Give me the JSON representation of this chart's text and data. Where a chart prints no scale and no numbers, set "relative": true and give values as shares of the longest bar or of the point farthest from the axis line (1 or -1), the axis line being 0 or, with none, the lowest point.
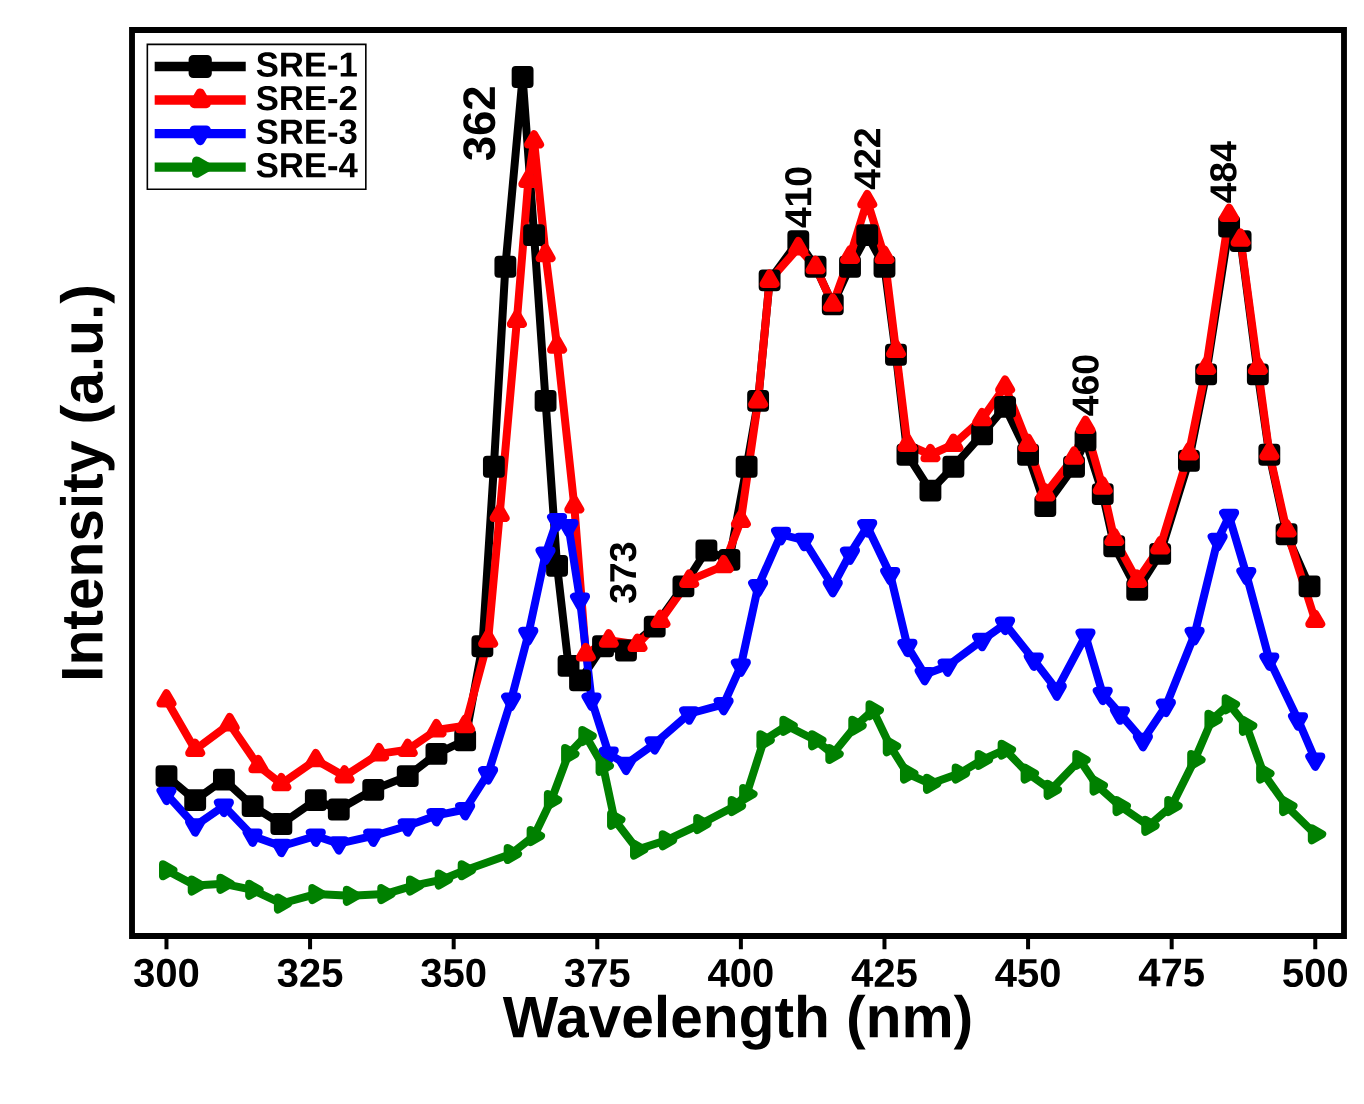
{
  "chart_data": {
    "type": "line",
    "relative": true,
    "xlabel": "Wavelength (nm)",
    "ylabel": "Intensity (a.u.)",
    "xlim": [
      294,
      505
    ],
    "xticks": [
      300,
      325,
      350,
      375,
      400,
      425,
      450,
      475,
      500
    ],
    "legend": "top left",
    "grid": false,
    "series": [
      {
        "name": "SRE-1",
        "color": "#000000",
        "marker": "square",
        "x": [
          300,
          305,
          310,
          315,
          320,
          326,
          330,
          336,
          342,
          347,
          352,
          355,
          357,
          359,
          362,
          364,
          366,
          368,
          370,
          372,
          376,
          380,
          385,
          390,
          394,
          398,
          401,
          403,
          405,
          410,
          413,
          416,
          419,
          422,
          425,
          427,
          429,
          433,
          437,
          442,
          446,
          450,
          453,
          458,
          460,
          463,
          465,
          469,
          473,
          478,
          481,
          485,
          487,
          490,
          492,
          495,
          499
        ],
        "values": [
          0.182,
          0.154,
          0.178,
          0.147,
          0.126,
          0.154,
          0.143,
          0.166,
          0.182,
          0.208,
          0.224,
          0.334,
          0.544,
          0.778,
          1.0,
          0.815,
          0.621,
          0.428,
          0.311,
          0.294,
          0.334,
          0.329,
          0.357,
          0.404,
          0.446,
          0.435,
          0.544,
          0.621,
          0.762,
          0.808,
          0.778,
          0.734,
          0.778,
          0.815,
          0.778,
          0.675,
          0.558,
          0.516,
          0.544,
          0.582,
          0.614,
          0.558,
          0.498,
          0.544,
          0.575,
          0.512,
          0.451,
          0.4,
          0.442,
          0.551,
          0.652,
          0.825,
          0.808,
          0.652,
          0.558,
          0.465,
          0.404
        ]
      },
      {
        "name": "SRE-2",
        "color": "#ff0000",
        "marker": "triangle",
        "x": [
          300,
          305,
          311,
          316,
          320,
          326,
          331,
          337,
          342,
          347,
          352,
          356,
          358,
          361,
          363,
          364,
          366,
          368,
          371,
          373,
          377,
          382,
          386,
          391,
          397,
          400,
          403,
          405,
          410,
          413,
          416,
          419,
          422,
          425,
          427,
          429,
          433,
          437,
          442,
          446,
          450,
          453,
          458,
          460,
          463,
          465,
          469,
          473,
          478,
          481,
          485,
          487,
          490,
          492,
          495,
          500
        ],
        "values": [
          0.271,
          0.213,
          0.243,
          0.194,
          0.173,
          0.201,
          0.182,
          0.208,
          0.213,
          0.236,
          0.241,
          0.341,
          0.488,
          0.715,
          0.879,
          0.925,
          0.792,
          0.685,
          0.498,
          0.325,
          0.341,
          0.336,
          0.364,
          0.411,
          0.428,
          0.481,
          0.621,
          0.762,
          0.8,
          0.778,
          0.734,
          0.79,
          0.855,
          0.79,
          0.68,
          0.57,
          0.558,
          0.57,
          0.6,
          0.638,
          0.57,
          0.512,
          0.555,
          0.591,
          0.52,
          0.46,
          0.411,
          0.45,
          0.56,
          0.66,
          0.839,
          0.81,
          0.66,
          0.56,
          0.47,
          0.364
        ]
      },
      {
        "name": "SRE-3",
        "color": "#0000ff",
        "marker": "triangle-down",
        "x": [
          300,
          305,
          310,
          315,
          320,
          326,
          330,
          336,
          342,
          347,
          352,
          356,
          360,
          363,
          366,
          368,
          370,
          372,
          374,
          377,
          380,
          385,
          391,
          397,
          400,
          403,
          407,
          411,
          416,
          419,
          422,
          426,
          429,
          432,
          436,
          442,
          446,
          451,
          455,
          460,
          463,
          466,
          470,
          474,
          479,
          483,
          485,
          488,
          492,
          497,
          500
        ],
        "values": [
          0.161,
          0.124,
          0.147,
          0.112,
          0.1,
          0.112,
          0.103,
          0.112,
          0.124,
          0.136,
          0.143,
          0.185,
          0.271,
          0.348,
          0.442,
          0.481,
          0.474,
          0.388,
          0.271,
          0.208,
          0.196,
          0.22,
          0.255,
          0.266,
          0.311,
          0.404,
          0.465,
          0.458,
          0.404,
          0.442,
          0.474,
          0.418,
          0.334,
          0.301,
          0.311,
          0.341,
          0.36,
          0.318,
          0.283,
          0.346,
          0.278,
          0.255,
          0.224,
          0.264,
          0.348,
          0.458,
          0.486,
          0.418,
          0.318,
          0.248,
          0.201
        ]
      },
      {
        "name": "SRE-4",
        "color": "#008000",
        "marker": "triangle-right",
        "x": [
          300,
          305,
          310,
          315,
          320,
          326,
          332,
          338,
          343,
          348,
          352,
          360,
          364,
          367,
          370,
          373,
          376,
          378,
          382,
          387,
          393,
          399,
          401,
          404,
          408,
          413,
          416,
          420,
          423,
          426,
          429,
          433,
          438,
          442,
          446,
          450,
          454,
          459,
          462,
          466,
          471,
          475,
          479,
          482,
          485,
          488,
          491,
          495,
          500
        ],
        "values": [
          0.072,
          0.054,
          0.056,
          0.049,
          0.033,
          0.044,
          0.042,
          0.044,
          0.054,
          0.061,
          0.072,
          0.091,
          0.112,
          0.154,
          0.208,
          0.229,
          0.194,
          0.131,
          0.096,
          0.107,
          0.126,
          0.147,
          0.161,
          0.224,
          0.241,
          0.224,
          0.208,
          0.241,
          0.259,
          0.217,
          0.185,
          0.173,
          0.185,
          0.201,
          0.213,
          0.185,
          0.166,
          0.201,
          0.171,
          0.147,
          0.124,
          0.147,
          0.201,
          0.248,
          0.266,
          0.241,
          0.185,
          0.147,
          0.114
        ]
      }
    ],
    "annotations": [
      {
        "text": "362",
        "x": 362,
        "y": 1.0
      },
      {
        "text": "373",
        "x": 373,
        "y": 0.33
      },
      {
        "text": "410",
        "x": 410,
        "y": 0.81
      },
      {
        "text": "422",
        "x": 422,
        "y": 0.855
      },
      {
        "text": "460",
        "x": 460,
        "y": 0.59
      },
      {
        "text": "484",
        "x": 484,
        "y": 0.839
      }
    ]
  }
}
